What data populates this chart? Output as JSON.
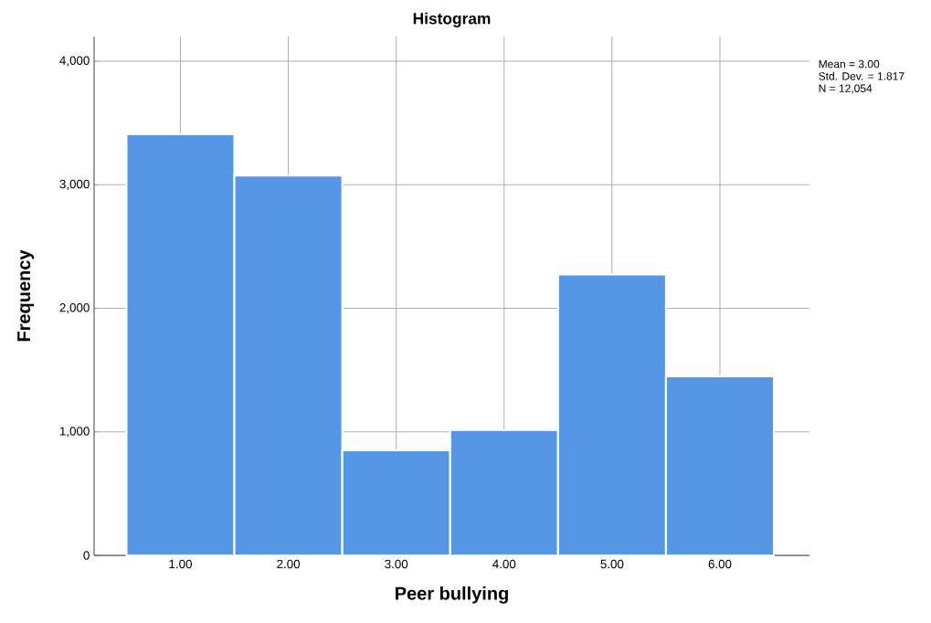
{
  "chart_data": {
    "type": "histogram",
    "title": "Histogram",
    "xlabel": "Peer bullying",
    "ylabel": "Frequency",
    "bins": [
      0.5,
      1.5,
      2.5,
      3.5,
      4.5,
      5.5,
      6.5
    ],
    "values": [
      3410,
      3075,
      850,
      1015,
      2275,
      1450
    ],
    "color": "#5596e6",
    "xlim": [
      0.2,
      6.83
    ],
    "ylim": [
      0,
      4200
    ],
    "xticks": [
      {
        "value": 1,
        "label": "1.00"
      },
      {
        "value": 2,
        "label": "2.00"
      },
      {
        "value": 3,
        "label": "3.00"
      },
      {
        "value": 4,
        "label": "4.00"
      },
      {
        "value": 5,
        "label": "5.00"
      },
      {
        "value": 6,
        "label": "6.00"
      }
    ],
    "yticks": [
      {
        "value": 0,
        "label": "0"
      },
      {
        "value": 1000,
        "label": "1,000"
      },
      {
        "value": 2000,
        "label": "2,000"
      },
      {
        "value": 3000,
        "label": "3,000"
      },
      {
        "value": 4000,
        "label": "4,000"
      }
    ],
    "grid": true,
    "annotations": [
      "Mean = 3.00",
      "Std. Dev. = 1.817",
      "N = 12,054"
    ]
  }
}
